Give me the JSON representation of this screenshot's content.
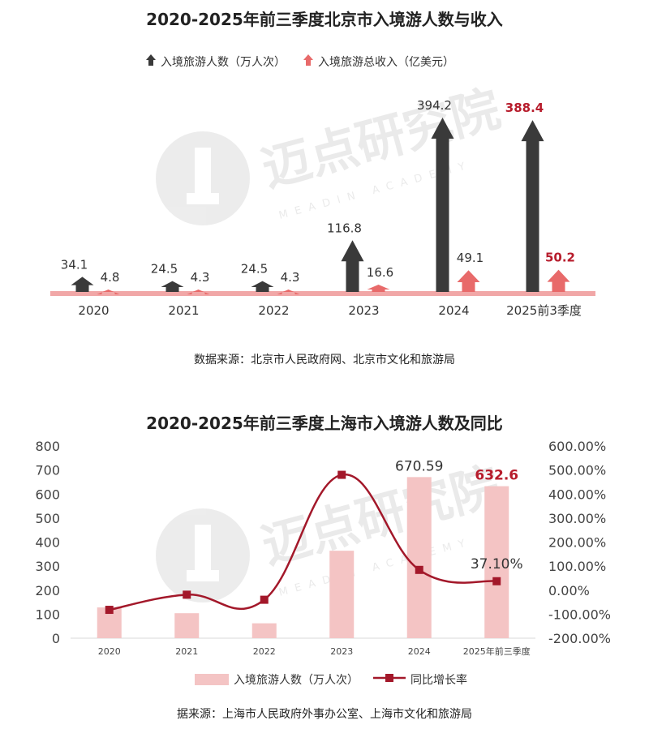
{
  "chart_data": [
    {
      "type": "bar",
      "title": "2020-2025年前三季度北京市入境游人数与收入",
      "categories": [
        "2020",
        "2021",
        "2022",
        "2023",
        "2024",
        "2025前3季度"
      ],
      "series": [
        {
          "name": "入境旅游人数（万人次）",
          "values": [
            34.1,
            24.5,
            24.5,
            116.8,
            394.2,
            388.4
          ],
          "labels": [
            "34.1",
            "24.5",
            "24.5",
            "116.8",
            "394.2",
            "388.4"
          ],
          "color": "#3a3a3a"
        },
        {
          "name": "入境旅游总收入（亿美元）",
          "values": [
            4.8,
            4.3,
            4.3,
            16.6,
            49.1,
            50.2
          ],
          "labels": [
            "4.8",
            "4.3",
            "4.3",
            "16.6",
            "49.1",
            "50.2"
          ],
          "color": "#e86a6a"
        }
      ],
      "highlight_category": "2025前3季度",
      "highlight_color": "#b71c2c",
      "source": "数据来源：北京市人民政府网、北京市文化和旅游局",
      "legend_position": "top"
    },
    {
      "type": "bar",
      "title": "2020-2025年前三季度上海市入境游人数及同比",
      "categories": [
        "2020",
        "2021",
        "2022",
        "2023",
        "2024",
        "2025年前三季度"
      ],
      "series": [
        {
          "name": "入境旅游人数（万人次）",
          "type": "bar",
          "axis": "left",
          "values": [
            128,
            104,
            62,
            364,
            670.59,
            632.6
          ],
          "color": "#f4c4c4"
        },
        {
          "name": "同比增长率",
          "type": "line",
          "axis": "right",
          "values": [
            -82,
            -19,
            -40,
            480,
            84.22,
            37.1
          ],
          "unit": "%",
          "color": "#a3182a"
        }
      ],
      "data_labels": [
        {
          "category": "2024",
          "text": "670.59"
        },
        {
          "category": "2025年前三季度",
          "text": "632.6",
          "highlight": true
        },
        {
          "category": "2025年前三季度",
          "text": "37.10%"
        }
      ],
      "ylim_left": [
        0,
        800
      ],
      "yticks_left": [
        "0",
        "100",
        "200",
        "300",
        "400",
        "500",
        "600",
        "700",
        "800"
      ],
      "ylim_right": [
        -200,
        600
      ],
      "yticks_right": [
        "-200.00%",
        "-100.00%",
        "0.00%",
        "100.00%",
        "200.00%",
        "300.00%",
        "400.00%",
        "500.00%",
        "600.00%"
      ],
      "source": "据来源：上海市人民政府外事办公室、上海市文化和旅游局",
      "legend_position": "bottom"
    }
  ],
  "watermark": {
    "text": "迈点研究院",
    "subtext": "MEADIN ACADEMY"
  }
}
